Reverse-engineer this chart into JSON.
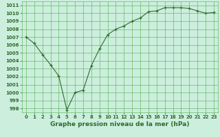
{
  "x": [
    0,
    1,
    2,
    3,
    4,
    5,
    6,
    7,
    8,
    9,
    10,
    11,
    12,
    13,
    14,
    15,
    16,
    17,
    18,
    19,
    20,
    21,
    22,
    23
  ],
  "y": [
    1007.0,
    1006.2,
    1004.8,
    1003.5,
    1002.1,
    997.8,
    1000.0,
    1000.3,
    1003.4,
    1005.5,
    1007.3,
    1008.0,
    1008.4,
    1009.0,
    1009.4,
    1010.2,
    1010.3,
    1010.7,
    1010.7,
    1010.7,
    1010.6,
    1010.3,
    1010.0,
    1010.1
  ],
  "line_color": "#2d6a2d",
  "marker_color": "#2d6a2d",
  "bg_color": "#cceedd",
  "grid_color": "#66bb66",
  "title": "Graphe pression niveau de la mer (hPa)",
  "ylim": [
    997.5,
    1011.5
  ],
  "xlim": [
    -0.5,
    23.5
  ],
  "yticks": [
    998,
    999,
    1000,
    1001,
    1002,
    1003,
    1004,
    1005,
    1006,
    1007,
    1008,
    1009,
    1010,
    1011
  ],
  "xticks": [
    0,
    1,
    2,
    3,
    4,
    5,
    6,
    7,
    8,
    9,
    10,
    11,
    12,
    13,
    14,
    15,
    16,
    17,
    18,
    19,
    20,
    21,
    22,
    23
  ],
  "title_fontsize": 6.5,
  "tick_fontsize": 5.0,
  "line_width": 0.8,
  "marker_size": 3.0
}
